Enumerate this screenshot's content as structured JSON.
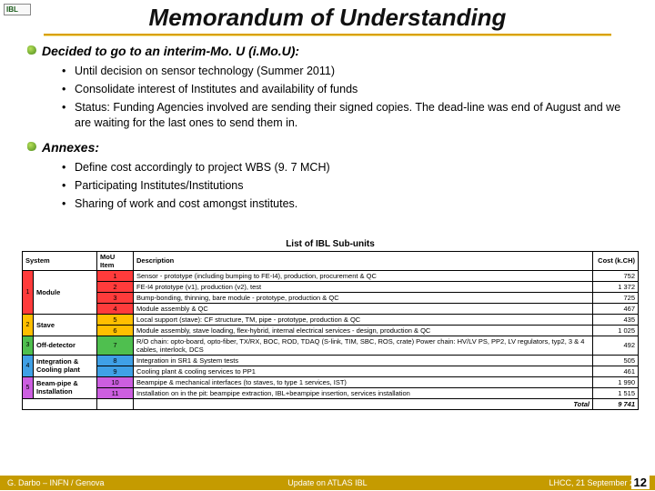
{
  "logo_text": "IBL",
  "title": "Memorandum of Understanding",
  "sections": [
    {
      "head": "Decided to go to an interim-Mo. U (i.Mo.U):",
      "bullets": [
        "Until decision on sensor technology (Summer 2011)",
        "Consolidate interest of Institutes and availability of funds",
        "Status: Funding Agencies involved are sending their signed copies. The dead-line was end of August and we are waiting for the last ones to send them in."
      ]
    },
    {
      "head": "Annexes:",
      "bullets": [
        "Define cost accordingly to project WBS (9. 7 MCH)",
        "Participating Institutes/Institutions",
        "Sharing of work and cost amongst institutes."
      ]
    }
  ],
  "table": {
    "title": "List of IBL Sub-units",
    "columns": [
      "System",
      "MoU Item",
      "Description",
      "Cost (k.CH)"
    ],
    "systems": [
      {
        "num": "1",
        "label": "Module",
        "color": "#ff3b3b",
        "rows": [
          {
            "item": "1",
            "desc": "Sensor - prototype (including bumping to FE-I4), production, procurement & QC",
            "cost": "752"
          },
          {
            "item": "2",
            "desc": "FE-I4 prototype (v1), production (v2), test",
            "cost": "1 372"
          },
          {
            "item": "3",
            "desc": "Bump-bonding, thinning, bare module - prototype, production & QC",
            "cost": "725"
          },
          {
            "item": "4",
            "desc": "Module assembly & QC",
            "cost": "467"
          }
        ]
      },
      {
        "num": "2",
        "label": "Stave",
        "color": "#ffbf00",
        "rows": [
          {
            "item": "5",
            "desc": "Local support (stave): CF structure, TM, pipe - prototype, production & QC",
            "cost": "435"
          },
          {
            "item": "6",
            "desc": "Module assembly, stave loading, flex-hybrid, internal electrical services - design, production & QC",
            "cost": "1 025"
          }
        ]
      },
      {
        "num": "3",
        "label": "Off-detector",
        "color": "#4fbf4f",
        "rows": [
          {
            "item": "7",
            "desc": "R/O chain: opto-board, opto-fiber, TX/RX, BOC, ROD, TDAQ (S-link, TIM, SBC, ROS, crate)\nPower chain: HV/LV PS, PP2, LV regulators, typ2, 3 & 4 cables, interlock, DCS",
            "cost": "492"
          }
        ]
      },
      {
        "num": "4",
        "label": "Integration & Cooling plant",
        "color": "#3fa0e6",
        "rows": [
          {
            "item": "8",
            "desc": "Integration in SR1 & System tests",
            "cost": "505"
          },
          {
            "item": "9",
            "desc": "Cooling plant & cooling services to PP1",
            "cost": "461"
          }
        ]
      },
      {
        "num": "5",
        "label": "Beam-pipe & Installation",
        "color": "#cc5ee0",
        "rows": [
          {
            "item": "10",
            "desc": "Beampipe & mechanical interfaces (to staves, to type 1 services, IST)",
            "cost": "1 990"
          },
          {
            "item": "11",
            "desc": "Installation on in the pit: beampipe extraction, IBL+beampipe insertion, services installation",
            "cost": "1 515"
          }
        ]
      }
    ],
    "total_label": "Total",
    "total_value": "9 741"
  },
  "footer": {
    "left": "G. Darbo – INFN / Genova",
    "center": "Update on ATLAS IBL",
    "right": "LHCC, 21 September 2010",
    "page": "12"
  },
  "colors": {
    "title_rule": "#d9a000",
    "footer_bg": "#c59b00"
  }
}
